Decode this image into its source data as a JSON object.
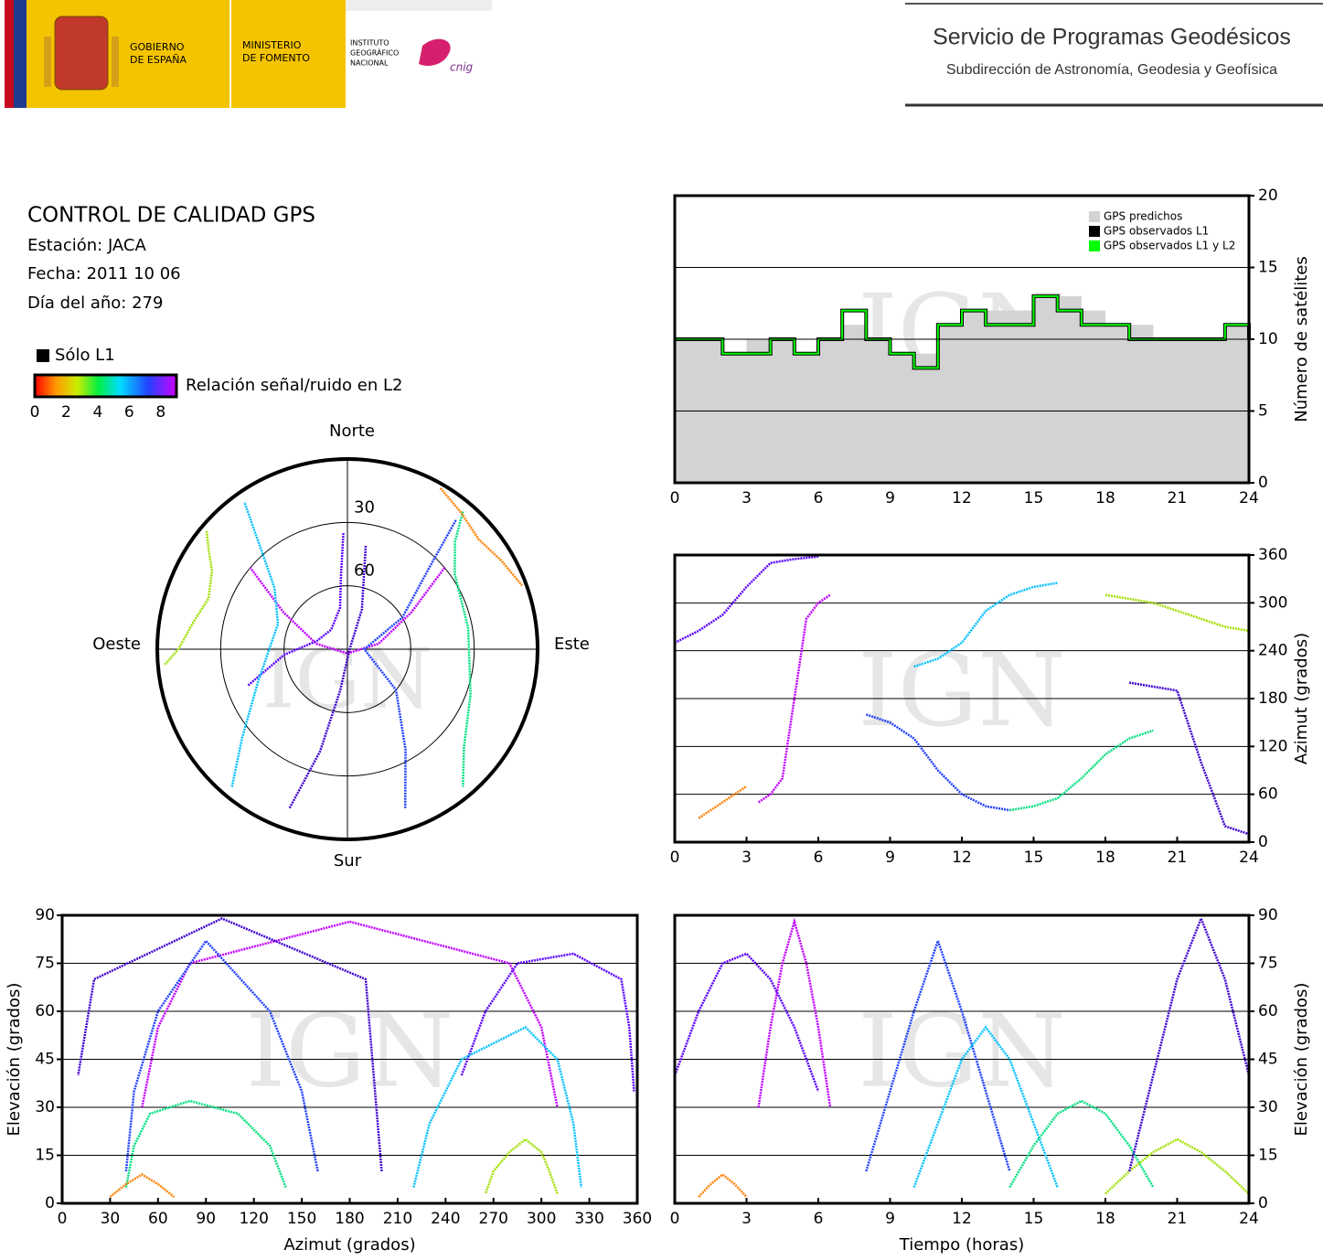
{
  "header": {
    "gobierno": [
      "GOBIERNO",
      "DE ESPAÑA"
    ],
    "ministerio": [
      "MINISTERIO",
      "DE FOMENTO"
    ],
    "instituto": [
      "INSTITUTO",
      "GEOGRÁFICO",
      "NACIONAL"
    ],
    "cnig": "cnig",
    "title": "Servicio de Programas Geodésicos",
    "subtitle": "Subdirección de Astronomía, Geodesia y Geofísica"
  },
  "info": {
    "title": "CONTROL DE CALIDAD GPS",
    "station": "Estación: JACA",
    "date": "Fecha: 2011 10 06",
    "doy": "Día del año: 279",
    "l1_only": "Sólo L1",
    "colorbar_label": "Relación señal/ruido en L2",
    "colorbar_lim": [
      0,
      9
    ],
    "colorbar_ticks": [
      0,
      2,
      4,
      6,
      8
    ],
    "watermark": "IGN"
  },
  "chart_data": [
    {
      "type": "step",
      "ylabel": "Número de satélites",
      "xlim": [
        0,
        24
      ],
      "xticks": [
        0,
        3,
        6,
        9,
        12,
        15,
        18,
        21,
        24
      ],
      "ylim": [
        0,
        20
      ],
      "yticks": [
        0,
        5,
        10,
        15,
        20
      ],
      "grid": true,
      "legend": "upper right",
      "x": [
        0,
        1,
        2,
        3,
        4,
        5,
        6,
        7,
        8,
        9,
        10,
        11,
        12,
        13,
        14,
        15,
        16,
        17,
        18,
        19,
        20,
        21,
        22,
        23,
        24
      ],
      "series": [
        {
          "name": "GPS predichos",
          "color": "#d3d3d3",
          "values": [
            10,
            10,
            9,
            10,
            10,
            9,
            10,
            11,
            10,
            9,
            9,
            11,
            12,
            12,
            12,
            13,
            13,
            12,
            11,
            11,
            10,
            10,
            10,
            11,
            10
          ]
        },
        {
          "name": "GPS observados L1",
          "color": "#000000",
          "values": [
            10,
            10,
            9,
            9,
            10,
            9,
            10,
            12,
            10,
            9,
            8,
            11,
            12,
            11,
            11,
            13,
            12,
            11,
            11,
            10,
            10,
            10,
            10,
            11,
            10
          ]
        },
        {
          "name": "GPS observados L1 y L2",
          "color": "#00ff00",
          "values": [
            10,
            10,
            9,
            9,
            10,
            9,
            10,
            12,
            10,
            9,
            8,
            11,
            12,
            11,
            11,
            13,
            12,
            11,
            11,
            10,
            10,
            10,
            10,
            11,
            10
          ]
        }
      ]
    },
    {
      "type": "polar",
      "rlim": [
        90,
        0
      ],
      "rticks": [
        30,
        60
      ],
      "directions": {
        "north": "Norte",
        "south": "Sur",
        "east": "Este",
        "west": "Oeste"
      },
      "series": [
        {
          "color": "#c000ff",
          "x": [
            50,
            60,
            80,
            180,
            280,
            300,
            310
          ],
          "values": [
            30,
            55,
            75,
            88,
            75,
            55,
            30
          ]
        },
        {
          "color": "#5a00ff",
          "x": [
            250,
            265,
            285,
            320,
            350,
            355,
            358
          ],
          "values": [
            40,
            60,
            75,
            78,
            70,
            55,
            35
          ]
        },
        {
          "color": "#2040ff",
          "x": [
            160,
            150,
            130,
            90,
            60,
            45,
            40
          ],
          "values": [
            10,
            35,
            60,
            82,
            60,
            35,
            10
          ]
        },
        {
          "color": "#00c0ff",
          "x": [
            220,
            230,
            250,
            290,
            310,
            320,
            325
          ],
          "values": [
            5,
            25,
            45,
            55,
            45,
            25,
            5
          ]
        },
        {
          "color": "#00e080",
          "x": [
            40,
            45,
            55,
            80,
            110,
            130,
            140
          ],
          "values": [
            5,
            18,
            28,
            32,
            28,
            18,
            5
          ]
        },
        {
          "color": "#a0e000",
          "x": [
            310,
            305,
            300,
            290,
            280,
            270,
            265
          ],
          "values": [
            3,
            10,
            16,
            20,
            16,
            10,
            3
          ]
        },
        {
          "color": "#ff8000",
          "x": [
            30,
            40,
            50,
            60,
            70
          ],
          "values": [
            2,
            6,
            9,
            6,
            2
          ]
        },
        {
          "color": "#4000d0",
          "x": [
            200,
            195,
            190,
            100,
            20,
            10
          ],
          "values": [
            10,
            40,
            70,
            89,
            70,
            40
          ]
        }
      ]
    },
    {
      "type": "line",
      "ylabel": "Azimut (grados)",
      "xlim": [
        0,
        24
      ],
      "xticks": [
        0,
        3,
        6,
        9,
        12,
        15,
        18,
        21,
        24
      ],
      "ylim": [
        0,
        360
      ],
      "yticks": [
        0,
        60,
        120,
        180,
        240,
        300,
        360
      ],
      "grid": true,
      "series": [
        {
          "color": "#c000ff",
          "x": [
            3.5,
            4,
            4.5,
            5,
            5.5,
            6,
            6.5
          ],
          "values": [
            50,
            60,
            80,
            180,
            280,
            300,
            310
          ]
        },
        {
          "color": "#5a00ff",
          "x": [
            0,
            1,
            2,
            3,
            4,
            5,
            6
          ],
          "values": [
            250,
            265,
            285,
            320,
            350,
            355,
            358
          ]
        },
        {
          "color": "#2040ff",
          "x": [
            8,
            9,
            10,
            11,
            12,
            13,
            14
          ],
          "values": [
            160,
            150,
            130,
            90,
            60,
            45,
            40
          ]
        },
        {
          "color": "#00c0ff",
          "x": [
            10,
            11,
            12,
            13,
            14,
            15,
            16
          ],
          "values": [
            220,
            230,
            250,
            290,
            310,
            320,
            325
          ]
        },
        {
          "color": "#00e080",
          "x": [
            14,
            15,
            16,
            17,
            18,
            19,
            20
          ],
          "values": [
            40,
            45,
            55,
            80,
            110,
            130,
            140
          ]
        },
        {
          "color": "#a0e000",
          "x": [
            18,
            19,
            20,
            21,
            22,
            23,
            24
          ],
          "values": [
            310,
            305,
            300,
            290,
            280,
            270,
            265
          ]
        },
        {
          "color": "#ff8000",
          "x": [
            1,
            1.5,
            2,
            2.5,
            3
          ],
          "values": [
            30,
            40,
            50,
            60,
            70
          ]
        },
        {
          "color": "#4000d0",
          "x": [
            19,
            20,
            21,
            22,
            23,
            24
          ],
          "values": [
            200,
            195,
            190,
            100,
            20,
            10
          ]
        }
      ]
    },
    {
      "type": "line",
      "xlabel": "Azimut (grados)",
      "ylabel": "Elevación (grados)",
      "xlim": [
        0,
        360
      ],
      "xticks": [
        0,
        30,
        60,
        90,
        120,
        150,
        180,
        210,
        240,
        270,
        300,
        330,
        360
      ],
      "ylim": [
        0,
        90
      ],
      "yticks": [
        0,
        15,
        30,
        45,
        60,
        75,
        90
      ],
      "grid": true,
      "series": [
        {
          "color": "#c000ff",
          "x": [
            50,
            60,
            80,
            180,
            280,
            300,
            310
          ],
          "values": [
            30,
            55,
            75,
            88,
            75,
            55,
            30
          ]
        },
        {
          "color": "#5a00ff",
          "x": [
            250,
            265,
            285,
            320,
            350,
            355,
            358
          ],
          "values": [
            40,
            60,
            75,
            78,
            70,
            55,
            35
          ]
        },
        {
          "color": "#2040ff",
          "x": [
            160,
            150,
            130,
            90,
            60,
            45,
            40
          ],
          "values": [
            10,
            35,
            60,
            82,
            60,
            35,
            10
          ]
        },
        {
          "color": "#00c0ff",
          "x": [
            220,
            230,
            250,
            290,
            310,
            320,
            325
          ],
          "values": [
            5,
            25,
            45,
            55,
            45,
            25,
            5
          ]
        },
        {
          "color": "#00e080",
          "x": [
            40,
            45,
            55,
            80,
            110,
            130,
            140
          ],
          "values": [
            5,
            18,
            28,
            32,
            28,
            18,
            5
          ]
        },
        {
          "color": "#a0e000",
          "x": [
            310,
            305,
            300,
            290,
            280,
            270,
            265
          ],
          "values": [
            3,
            10,
            16,
            20,
            16,
            10,
            3
          ]
        },
        {
          "color": "#ff8000",
          "x": [
            30,
            40,
            50,
            60,
            70
          ],
          "values": [
            2,
            6,
            9,
            6,
            2
          ]
        },
        {
          "color": "#4000d0",
          "x": [
            200,
            195,
            190,
            100,
            20,
            10
          ],
          "values": [
            10,
            40,
            70,
            89,
            70,
            40
          ]
        }
      ]
    },
    {
      "type": "line",
      "xlabel": "Tiempo (horas)",
      "ylabel": "Elevación (grados)",
      "xlim": [
        0,
        24
      ],
      "xticks": [
        0,
        3,
        6,
        9,
        12,
        15,
        18,
        21,
        24
      ],
      "ylim": [
        0,
        90
      ],
      "yticks": [
        0,
        15,
        30,
        45,
        60,
        75,
        90
      ],
      "grid": true,
      "series": [
        {
          "color": "#c000ff",
          "x": [
            3.5,
            4,
            4.5,
            5,
            5.5,
            6,
            6.5
          ],
          "values": [
            30,
            55,
            75,
            88,
            75,
            55,
            30
          ]
        },
        {
          "color": "#5a00ff",
          "x": [
            0,
            1,
            2,
            3,
            4,
            5,
            6
          ],
          "values": [
            40,
            60,
            75,
            78,
            70,
            55,
            35
          ]
        },
        {
          "color": "#2040ff",
          "x": [
            8,
            9,
            10,
            11,
            12,
            13,
            14
          ],
          "values": [
            10,
            35,
            60,
            82,
            60,
            35,
            10
          ]
        },
        {
          "color": "#00c0ff",
          "x": [
            10,
            11,
            12,
            13,
            14,
            15,
            16
          ],
          "values": [
            5,
            25,
            45,
            55,
            45,
            25,
            5
          ]
        },
        {
          "color": "#00e080",
          "x": [
            14,
            15,
            16,
            17,
            18,
            19,
            20
          ],
          "values": [
            5,
            18,
            28,
            32,
            28,
            18,
            5
          ]
        },
        {
          "color": "#a0e000",
          "x": [
            18,
            19,
            20,
            21,
            22,
            23,
            24
          ],
          "values": [
            3,
            10,
            16,
            20,
            16,
            10,
            3
          ]
        },
        {
          "color": "#ff8000",
          "x": [
            1,
            1.5,
            2,
            2.5,
            3
          ],
          "values": [
            2,
            6,
            9,
            6,
            2
          ]
        },
        {
          "color": "#4000d0",
          "x": [
            19,
            20,
            21,
            22,
            23,
            24
          ],
          "values": [
            10,
            40,
            70,
            89,
            70,
            40
          ]
        }
      ]
    }
  ]
}
